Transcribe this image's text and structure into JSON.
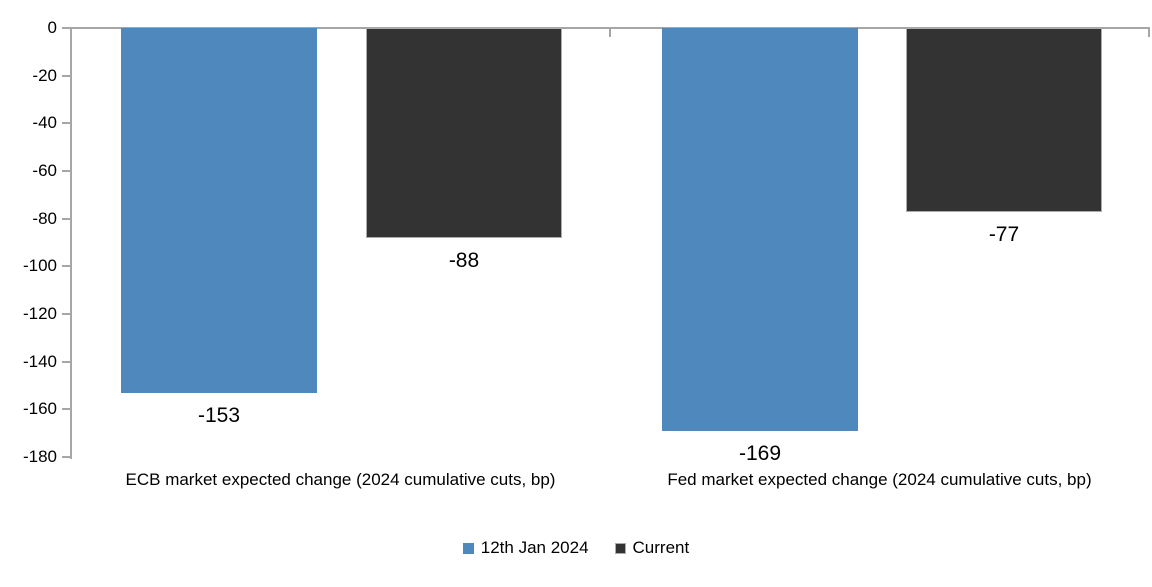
{
  "chart_data": {
    "type": "bar",
    "categories": [
      "ECB market expected change (2024 cumulative cuts, bp)",
      "Fed market expected change (2024 cumulative cuts, bp)"
    ],
    "series": [
      {
        "name": "12th Jan 2024",
        "color": "#4E88BD",
        "border_color": "",
        "values": [
          -153,
          -169
        ]
      },
      {
        "name": "Current",
        "color": "#333333",
        "border_color": "#ABABAB",
        "values": [
          -88,
          -77
        ]
      }
    ],
    "data_labels": [
      [
        "-153",
        "-169"
      ],
      [
        "-88",
        "-77"
      ]
    ],
    "y_ticks": [
      0,
      -20,
      -40,
      -60,
      -80,
      -100,
      -120,
      -140,
      -160,
      -180
    ],
    "ylim": [
      -180,
      0
    ],
    "grid": false,
    "legend_position": "bottom",
    "axis_color": "#A6A6A6",
    "text_color": "#000000",
    "background": "#FFFFFF"
  }
}
